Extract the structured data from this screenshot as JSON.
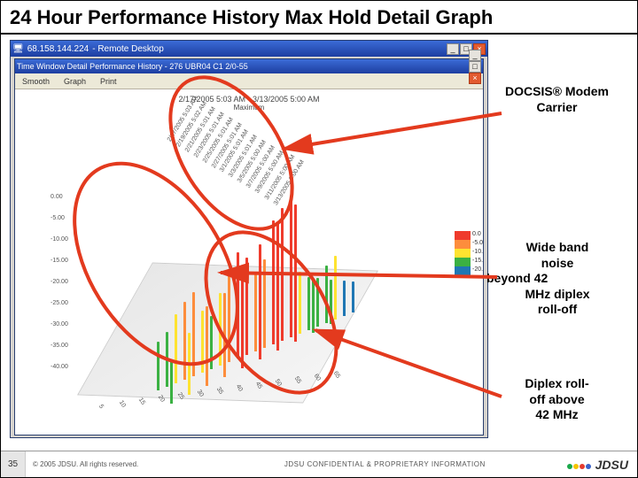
{
  "slide": {
    "title": "24 Hour Performance History Max Hold Detail Graph"
  },
  "remote_desktop": {
    "title_ip": "68.158.144.224",
    "title_suffix": "- Remote Desktop",
    "buttons": {
      "min": "_",
      "max": "□",
      "close": "×"
    }
  },
  "app": {
    "title": "Time Window Detail Performance History - 276 UBR04 C1 2/0-55",
    "toolbar": {
      "menu1": "Smooth",
      "menu2": "Graph",
      "menu3": "Print"
    }
  },
  "chart": {
    "caption_line1": "2/17/2005 5:03 AM - 3/13/2005 5:00 AM",
    "caption_line2": "Maximum",
    "legend_colors": [
      "#ef3b2c",
      "#fd8d3c",
      "#fee330",
      "#3bb143",
      "#1f77b4"
    ],
    "legend_labels": [
      "0.0",
      "-5.0",
      "-10.0",
      "-15.0",
      "-20.0"
    ],
    "floor_bg": "#efefef",
    "bars": [
      {
        "x": 90,
        "y": 300,
        "h": 55,
        "c": "#3bb143"
      },
      {
        "x": 100,
        "y": 296,
        "h": 62,
        "c": "#3bb143"
      },
      {
        "x": 110,
        "y": 292,
        "h": 78,
        "c": "#fee330"
      },
      {
        "x": 120,
        "y": 288,
        "h": 88,
        "c": "#fd8d3c"
      },
      {
        "x": 130,
        "y": 284,
        "h": 95,
        "c": "#fd8d3c"
      },
      {
        "x": 140,
        "y": 280,
        "h": 70,
        "c": "#fee330"
      },
      {
        "x": 150,
        "y": 276,
        "h": 60,
        "c": "#3bb143"
      },
      {
        "x": 160,
        "y": 272,
        "h": 82,
        "c": "#fee330"
      },
      {
        "x": 170,
        "y": 268,
        "h": 98,
        "c": "#fd8d3c"
      },
      {
        "x": 180,
        "y": 264,
        "h": 120,
        "c": "#ef3b2c"
      },
      {
        "x": 190,
        "y": 260,
        "h": 110,
        "c": "#ef3b2c"
      },
      {
        "x": 200,
        "y": 256,
        "h": 90,
        "c": "#fd8d3c"
      },
      {
        "x": 210,
        "y": 252,
        "h": 100,
        "c": "#fd8d3c"
      },
      {
        "x": 220,
        "y": 248,
        "h": 140,
        "c": "#ef3b2c"
      },
      {
        "x": 230,
        "y": 244,
        "h": 150,
        "c": "#ef3b2c"
      },
      {
        "x": 240,
        "y": 240,
        "h": 160,
        "c": "#ef3b2c"
      },
      {
        "x": 250,
        "y": 236,
        "h": 70,
        "c": "#fee330"
      },
      {
        "x": 260,
        "y": 232,
        "h": 60,
        "c": "#3bb143"
      },
      {
        "x": 270,
        "y": 228,
        "h": 55,
        "c": "#3bb143"
      },
      {
        "x": 280,
        "y": 224,
        "h": 65,
        "c": "#3bb143"
      },
      {
        "x": 290,
        "y": 220,
        "h": 72,
        "c": "#fee330"
      },
      {
        "x": 300,
        "y": 216,
        "h": 40,
        "c": "#1f77b4"
      },
      {
        "x": 310,
        "y": 212,
        "h": 35,
        "c": "#1f77b4"
      },
      {
        "x": 105,
        "y": 315,
        "h": 48,
        "c": "#3bb143"
      },
      {
        "x": 125,
        "y": 305,
        "h": 70,
        "c": "#fee330"
      },
      {
        "x": 145,
        "y": 295,
        "h": 90,
        "c": "#fd8d3c"
      },
      {
        "x": 165,
        "y": 285,
        "h": 95,
        "c": "#fd8d3c"
      },
      {
        "x": 185,
        "y": 275,
        "h": 115,
        "c": "#ef3b2c"
      },
      {
        "x": 205,
        "y": 265,
        "h": 130,
        "c": "#ef3b2c"
      },
      {
        "x": 225,
        "y": 255,
        "h": 145,
        "c": "#ef3b2c"
      },
      {
        "x": 245,
        "y": 245,
        "h": 155,
        "c": "#ef3b2c"
      },
      {
        "x": 265,
        "y": 235,
        "h": 60,
        "c": "#3bb143"
      },
      {
        "x": 285,
        "y": 225,
        "h": 50,
        "c": "#3bb143"
      }
    ],
    "y_ticks": [
      "-40.00",
      "-35.00",
      "-30.00",
      "-25.00",
      "-20.00",
      "-15.00",
      "-10.00",
      "-5.00",
      "0.00"
    ],
    "x_ticks_front": [
      "5",
      "10",
      "15",
      "20",
      "25",
      "30",
      "35",
      "40",
      "45",
      "50",
      "55",
      "60",
      "65"
    ],
    "z_ticks": [
      "2/17/2005 5:03 AM",
      "2/19/2005 5:02 AM",
      "2/21/2005 5:01 AM",
      "2/23/2005 5:01 AM",
      "2/25/2005 5:01 AM",
      "2/27/2005 5:01 AM",
      "3/1/2005 5:01 AM",
      "3/3/2005 5:01 AM",
      "3/5/2005 5:00 AM",
      "3/7/2005 5:00 AM",
      "3/9/2005 5:00 AM",
      "3/11/2005 5:00 AM",
      "3/13/2005 5:00 AM"
    ]
  },
  "annotations": {
    "a1": "DOCSIS® Modem Carrier",
    "a2_l1": "Wide band",
    "a2_l2": "noise",
    "a2_l3": "beyond    42",
    "a2_l4": "MHz diplex",
    "a2_l5": "roll-off",
    "a3_l1": "Diplex roll-",
    "a3_l2": "off above",
    "a3_l3": "42 MHz",
    "arrow_color": "#e33a1e",
    "ellipse_color": "#e33a1e"
  },
  "footer": {
    "page": "35",
    "copyright": "© 2005 JDSU. All rights reserved.",
    "confidential": "JDSU CONFIDENTIAL & PROPRIETARY INFORMATION",
    "logo_text": "JDSU",
    "logo_colors": [
      "#19a84a",
      "#f5c400",
      "#e43b2f",
      "#3a62c9"
    ]
  }
}
